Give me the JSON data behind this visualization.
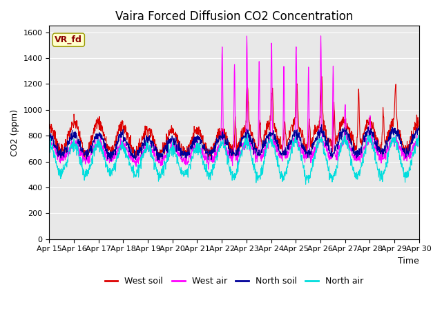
{
  "title": "Vaira Forced Diffusion CO2 Concentration",
  "xlabel": "Time",
  "ylabel": "CO2 (ppm)",
  "ylim": [
    0,
    1650
  ],
  "yticks": [
    0,
    200,
    400,
    600,
    800,
    1000,
    1200,
    1400,
    1600
  ],
  "x_labels": [
    "Apr 15",
    "Apr 16",
    "Apr 17",
    "Apr 18",
    "Apr 19",
    "Apr 20",
    "Apr 21",
    "Apr 22",
    "Apr 23",
    "Apr 24",
    "Apr 25",
    "Apr 26",
    "Apr 27",
    "Apr 28",
    "Apr 29",
    "Apr 30"
  ],
  "line_colors": {
    "west_soil": "#dd0000",
    "west_air": "#ff00ff",
    "north_soil": "#000099",
    "north_air": "#00dddd"
  },
  "legend_label": "VR_fd",
  "legend_entries": [
    "West soil",
    "West air",
    "North soil",
    "North air"
  ],
  "background_color": "#e8e8e8",
  "fig_background": "#ffffff",
  "title_fontsize": 12,
  "axis_fontsize": 9,
  "tick_fontsize": 8,
  "legend_fontsize": 9
}
